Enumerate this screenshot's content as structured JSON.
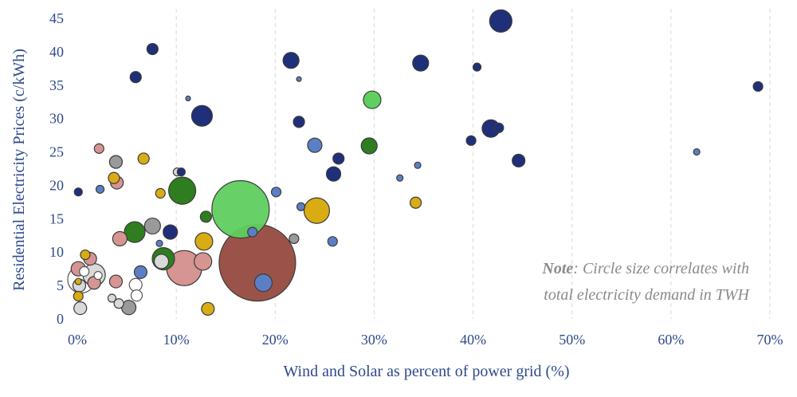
{
  "chart_data": {
    "type": "scatter",
    "subtype": "bubble",
    "xlabel": "Wind and Solar as percent of power grid (%)",
    "ylabel": "Residential Electricity Prices (c/kWh)",
    "xlim": [
      0,
      70
    ],
    "ylim": [
      0,
      45
    ],
    "x_ticks": [
      0,
      10,
      20,
      30,
      40,
      50,
      60,
      70
    ],
    "x_tick_labels": [
      "0%",
      "10%",
      "20%",
      "30%",
      "40%",
      "50%",
      "60%",
      "70%"
    ],
    "y_ticks": [
      0,
      5,
      10,
      15,
      20,
      25,
      30,
      35,
      40,
      45
    ],
    "y_tick_labels": [
      "0",
      "5",
      "10",
      "15",
      "20",
      "25",
      "30",
      "35",
      "40",
      "45"
    ],
    "grid": "vertical dashed",
    "note": {
      "lead": "Note",
      "line1_rest": ": Circle size correlates with",
      "line2": "total electricity demand in TWH"
    },
    "colors": {
      "navy": "#1f2f7a",
      "blue": "#5b7fc4",
      "green": "#2e7d1f",
      "lightgreen": "#5fcf5f",
      "gold": "#d9ac14",
      "pink": "#d69592",
      "brown": "#964a3f",
      "gray": "#9a9a9a",
      "lightgray": "#d9d9d9",
      "white": "#ffffff"
    },
    "points": [
      {
        "x": 42.8,
        "y": 44.6,
        "size": 14,
        "color": "navy"
      },
      {
        "x": 7.6,
        "y": 40.4,
        "size": 7,
        "color": "navy"
      },
      {
        "x": 21.6,
        "y": 38.7,
        "size": 10,
        "color": "navy"
      },
      {
        "x": 34.7,
        "y": 38.3,
        "size": 10,
        "color": "navy"
      },
      {
        "x": 40.4,
        "y": 37.7,
        "size": 5,
        "color": "navy"
      },
      {
        "x": 5.9,
        "y": 36.2,
        "size": 7,
        "color": "navy"
      },
      {
        "x": 22.4,
        "y": 35.9,
        "size": 3,
        "color": "blue"
      },
      {
        "x": 68.8,
        "y": 34.8,
        "size": 6,
        "color": "navy"
      },
      {
        "x": 11.2,
        "y": 33.0,
        "size": 3,
        "color": "blue"
      },
      {
        "x": 29.8,
        "y": 32.8,
        "size": 11,
        "color": "lightgreen"
      },
      {
        "x": 12.6,
        "y": 30.4,
        "size": 13,
        "color": "navy"
      },
      {
        "x": 22.4,
        "y": 29.5,
        "size": 7,
        "color": "navy"
      },
      {
        "x": 41.8,
        "y": 28.5,
        "size": 11,
        "color": "navy"
      },
      {
        "x": 42.6,
        "y": 28.6,
        "size": 6,
        "color": "navy"
      },
      {
        "x": 39.8,
        "y": 26.7,
        "size": 6,
        "color": "navy"
      },
      {
        "x": 24.0,
        "y": 26.0,
        "size": 9,
        "color": "blue"
      },
      {
        "x": 29.5,
        "y": 25.9,
        "size": 10,
        "color": "green"
      },
      {
        "x": 2.2,
        "y": 25.5,
        "size": 6,
        "color": "pink"
      },
      {
        "x": 62.6,
        "y": 25.0,
        "size": 4,
        "color": "blue"
      },
      {
        "x": 6.7,
        "y": 24.0,
        "size": 7,
        "color": "gold"
      },
      {
        "x": 26.4,
        "y": 24.0,
        "size": 7,
        "color": "navy"
      },
      {
        "x": 44.6,
        "y": 23.7,
        "size": 8,
        "color": "navy"
      },
      {
        "x": 3.9,
        "y": 23.5,
        "size": 8,
        "color": "gray"
      },
      {
        "x": 34.4,
        "y": 23.0,
        "size": 4,
        "color": "blue"
      },
      {
        "x": 10.1,
        "y": 22.0,
        "size": 5,
        "color": "lightgray"
      },
      {
        "x": 10.5,
        "y": 22.0,
        "size": 5,
        "color": "navy"
      },
      {
        "x": 25.9,
        "y": 21.7,
        "size": 9,
        "color": "navy"
      },
      {
        "x": 32.6,
        "y": 21.1,
        "size": 4,
        "color": "blue"
      },
      {
        "x": 3.7,
        "y": 21.1,
        "size": 7,
        "color": "gold"
      },
      {
        "x": 4.0,
        "y": 20.4,
        "size": 8,
        "color": "pink"
      },
      {
        "x": 2.3,
        "y": 19.4,
        "size": 5,
        "color": "blue"
      },
      {
        "x": 0.1,
        "y": 19.0,
        "size": 5,
        "color": "navy"
      },
      {
        "x": 10.6,
        "y": 19.2,
        "size": 17,
        "color": "green"
      },
      {
        "x": 20.1,
        "y": 19.0,
        "size": 6,
        "color": "blue"
      },
      {
        "x": 8.4,
        "y": 18.8,
        "size": 6,
        "color": "gold"
      },
      {
        "x": 34.2,
        "y": 17.4,
        "size": 7,
        "color": "gold"
      },
      {
        "x": 16.5,
        "y": 16.4,
        "size": 36,
        "color": "lightgreen"
      },
      {
        "x": 22.6,
        "y": 16.8,
        "size": 5,
        "color": "blue"
      },
      {
        "x": 24.2,
        "y": 16.2,
        "size": 16,
        "color": "gold"
      },
      {
        "x": 13.0,
        "y": 15.3,
        "size": 7,
        "color": "green"
      },
      {
        "x": 7.6,
        "y": 13.9,
        "size": 10,
        "color": "gray"
      },
      {
        "x": 5.8,
        "y": 13.0,
        "size": 13,
        "color": "green"
      },
      {
        "x": 17.7,
        "y": 13.0,
        "size": 6,
        "color": "blue"
      },
      {
        "x": 9.4,
        "y": 13.0,
        "size": 9,
        "color": "navy"
      },
      {
        "x": 4.3,
        "y": 12.0,
        "size": 9,
        "color": "pink"
      },
      {
        "x": 21.9,
        "y": 12.0,
        "size": 6,
        "color": "gray"
      },
      {
        "x": 12.8,
        "y": 11.6,
        "size": 11,
        "color": "gold"
      },
      {
        "x": 25.8,
        "y": 11.6,
        "size": 6,
        "color": "blue"
      },
      {
        "x": 8.3,
        "y": 11.3,
        "size": 4,
        "color": "blue"
      },
      {
        "x": 0.8,
        "y": 9.6,
        "size": 6,
        "color": "gold"
      },
      {
        "x": 8.7,
        "y": 9.0,
        "size": 14,
        "color": "green"
      },
      {
        "x": 1.3,
        "y": 9.0,
        "size": 8,
        "color": "pink"
      },
      {
        "x": 12.7,
        "y": 8.6,
        "size": 11,
        "color": "pink"
      },
      {
        "x": 18.2,
        "y": 8.4,
        "size": 48,
        "color": "brown"
      },
      {
        "x": 8.5,
        "y": 8.6,
        "size": 9,
        "color": "lightgray"
      },
      {
        "x": 10.8,
        "y": 7.6,
        "size": 22,
        "color": "pink"
      },
      {
        "x": 0.1,
        "y": 7.5,
        "size": 9,
        "color": "pink"
      },
      {
        "x": 0.7,
        "y": 7.1,
        "size": 6,
        "color": "white"
      },
      {
        "x": 6.4,
        "y": 7.0,
        "size": 8,
        "color": "blue"
      },
      {
        "x": 1.7,
        "y": 6.6,
        "size": 14,
        "color": "lightgray"
      },
      {
        "x": 2.1,
        "y": 6.5,
        "size": 5,
        "color": "white"
      },
      {
        "x": 0.4,
        "y": 5.9,
        "size": 17,
        "color": "white"
      },
      {
        "x": 3.9,
        "y": 5.6,
        "size": 8,
        "color": "pink"
      },
      {
        "x": 1.7,
        "y": 5.4,
        "size": 8,
        "color": "pink"
      },
      {
        "x": 0.1,
        "y": 5.6,
        "size": 4,
        "color": "gold"
      },
      {
        "x": 18.8,
        "y": 5.4,
        "size": 11,
        "color": "blue"
      },
      {
        "x": 5.9,
        "y": 5.1,
        "size": 8,
        "color": "white"
      },
      {
        "x": 0.2,
        "y": 5.0,
        "size": 8,
        "color": "lightgray"
      },
      {
        "x": 6.0,
        "y": 3.5,
        "size": 7,
        "color": "white"
      },
      {
        "x": 0.1,
        "y": 3.4,
        "size": 6,
        "color": "gold"
      },
      {
        "x": 3.5,
        "y": 3.1,
        "size": 5,
        "color": "lightgray"
      },
      {
        "x": 4.2,
        "y": 2.3,
        "size": 6,
        "color": "lightgray"
      },
      {
        "x": 5.2,
        "y": 1.7,
        "size": 9,
        "color": "gray"
      },
      {
        "x": 0.3,
        "y": 1.6,
        "size": 8,
        "color": "lightgray"
      },
      {
        "x": 13.2,
        "y": 1.5,
        "size": 8,
        "color": "gold"
      }
    ]
  }
}
